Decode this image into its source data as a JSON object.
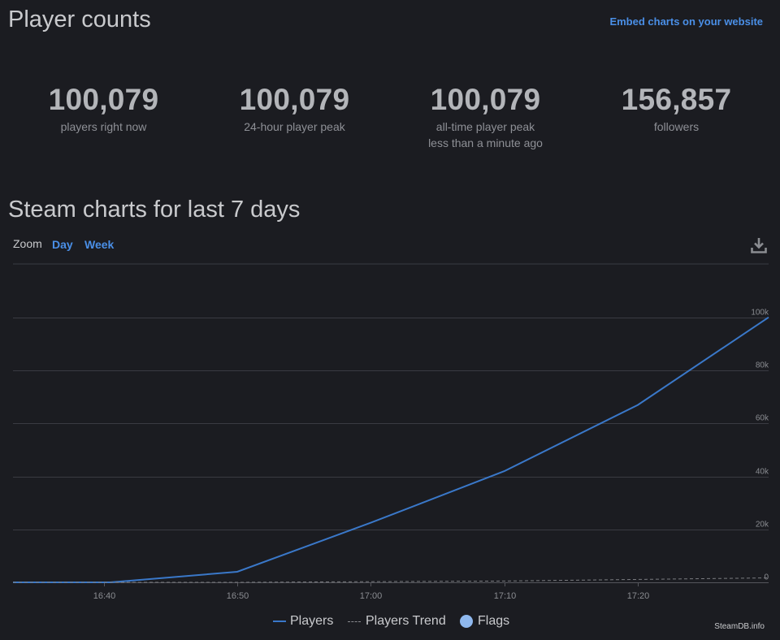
{
  "header": {
    "title": "Player counts",
    "embed_link": "Embed charts on your website"
  },
  "stats": [
    {
      "value": "100,079",
      "label": "players right now",
      "sublabel": ""
    },
    {
      "value": "100,079",
      "label": "24-hour player peak",
      "sublabel": ""
    },
    {
      "value": "100,079",
      "label": "all-time player peak",
      "sublabel": "less than a minute ago"
    },
    {
      "value": "156,857",
      "label": "followers",
      "sublabel": ""
    }
  ],
  "chart_section": {
    "title": "Steam charts for last 7 days",
    "zoom_label": "Zoom",
    "zoom_options": [
      "Day",
      "Week"
    ],
    "download_icon": "download-icon"
  },
  "chart_data": {
    "type": "line",
    "title": "",
    "xlabel": "",
    "ylabel": "",
    "x_ticks": [
      "16:40",
      "16:50",
      "17:00",
      "17:10",
      "17:20"
    ],
    "x_tick_minutes": [
      40,
      50,
      60,
      70,
      80
    ],
    "xlim_minutes": [
      33.2,
      89.8
    ],
    "y_ticks": [
      "0",
      "20k",
      "40k",
      "60k",
      "80k",
      "100k"
    ],
    "ylim": [
      0,
      100000
    ],
    "grid": true,
    "legend_position": "bottom-center",
    "series": [
      {
        "name": "Players",
        "color": "#3a78c9",
        "style": "solid",
        "points": [
          [
            33.2,
            0
          ],
          [
            40.5,
            0
          ],
          [
            50,
            4000
          ],
          [
            60,
            22500
          ],
          [
            70,
            42000
          ],
          [
            80,
            67000
          ],
          [
            89.8,
            100079
          ]
        ]
      },
      {
        "name": "Players Trend",
        "color": "#7a7b80",
        "style": "dashed",
        "points": [
          [
            33.2,
            0
          ],
          [
            50,
            0
          ],
          [
            70,
            500
          ],
          [
            89.8,
            1700
          ]
        ]
      }
    ],
    "flags_label": "Flags",
    "flags_color": "#8fb8ee"
  },
  "footer": {
    "credit": "SteamDB.info"
  }
}
